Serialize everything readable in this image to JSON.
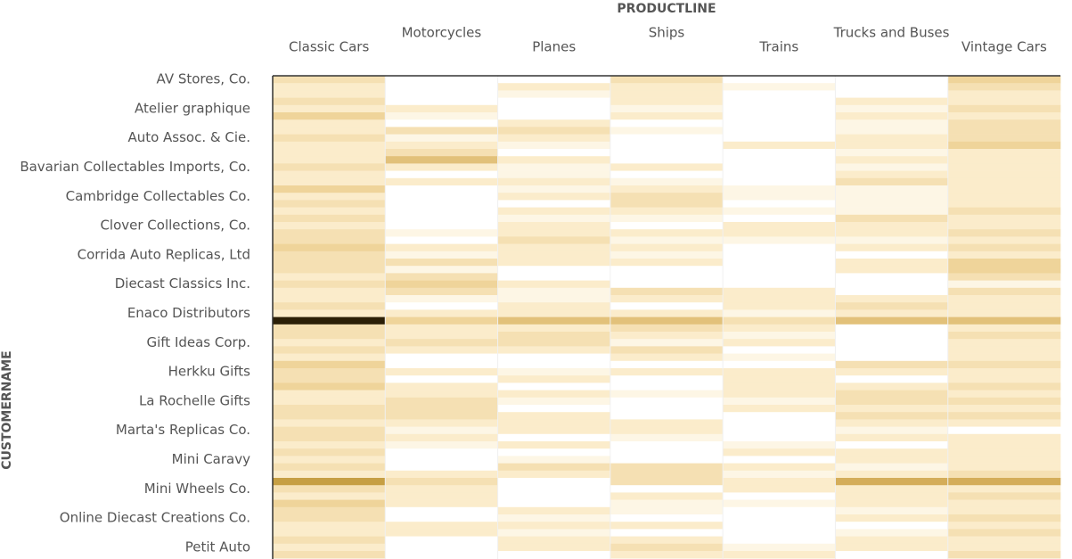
{
  "chart_data": {
    "type": "heatmap",
    "x_title": "PRODUCTLINE",
    "y_title": "CUSTOMERNAME",
    "x": [
      "Classic Cars",
      "Motorcycles",
      "Planes",
      "Ships",
      "Trains",
      "Trucks and Buses",
      "Vintage Cars"
    ],
    "categories": [
      "AV Stores, Co.",
      null,
      null,
      null,
      "Atelier graphique",
      null,
      null,
      null,
      "Auto Assoc. & Cie.",
      null,
      null,
      null,
      "Bavarian Collectables Imports, Co.",
      null,
      null,
      null,
      "Cambridge Collectables Co.",
      null,
      null,
      null,
      "Clover Collections, Co.",
      null,
      null,
      null,
      "Corrida Auto Replicas, Ltd",
      null,
      null,
      null,
      "Diecast Classics Inc.",
      null,
      null,
      null,
      "Enaco Distributors",
      null,
      null,
      null,
      "Gift Ideas Corp.",
      null,
      null,
      null,
      "Herkku Gifts",
      null,
      null,
      null,
      "La Rochelle Gifts",
      null,
      null,
      null,
      "Marta's Replicas Co.",
      null,
      null,
      null,
      "Mini Caravy",
      null,
      null,
      null,
      "Mini Wheels Co.",
      null,
      null,
      null,
      "Online Diecast Creations Co.",
      null,
      null,
      null,
      "Petit Auto",
      null
    ],
    "z": [
      [
        3,
        0,
        0,
        3,
        0,
        0,
        4
      ],
      [
        2,
        0,
        2,
        2,
        1,
        0,
        3
      ],
      [
        2,
        0,
        1,
        2,
        0,
        0,
        2
      ],
      [
        3,
        0,
        0,
        2,
        0,
        2,
        2
      ],
      [
        2,
        2,
        0,
        1,
        0,
        1,
        3
      ],
      [
        4,
        1,
        0,
        2,
        0,
        2,
        2
      ],
      [
        2,
        0,
        2,
        0,
        0,
        1,
        3
      ],
      [
        2,
        3,
        3,
        1,
        0,
        1,
        3
      ],
      [
        3,
        1,
        2,
        0,
        0,
        2,
        3
      ],
      [
        2,
        2,
        1,
        0,
        2,
        2,
        4
      ],
      [
        2,
        3,
        0,
        0,
        0,
        1,
        2
      ],
      [
        2,
        5,
        2,
        0,
        0,
        2,
        2
      ],
      [
        3,
        2,
        1,
        2,
        0,
        1,
        2
      ],
      [
        2,
        0,
        1,
        0,
        0,
        2,
        2
      ],
      [
        2,
        2,
        2,
        1,
        0,
        3,
        2
      ],
      [
        4,
        0,
        1,
        2,
        1,
        1,
        2
      ],
      [
        2,
        0,
        2,
        3,
        1,
        1,
        2
      ],
      [
        3,
        0,
        0,
        3,
        0,
        1,
        2
      ],
      [
        2,
        0,
        2,
        2,
        1,
        1,
        3
      ],
      [
        3,
        0,
        1,
        1,
        0,
        3,
        2
      ],
      [
        2,
        0,
        2,
        0,
        2,
        2,
        2
      ],
      [
        3,
        1,
        2,
        2,
        2,
        2,
        3
      ],
      [
        3,
        0,
        3,
        1,
        1,
        1,
        2
      ],
      [
        4,
        2,
        2,
        2,
        0,
        2,
        3
      ],
      [
        3,
        1,
        2,
        1,
        0,
        0,
        2
      ],
      [
        3,
        3,
        2,
        2,
        0,
        2,
        4
      ],
      [
        3,
        1,
        0,
        0,
        0,
        2,
        4
      ],
      [
        2,
        3,
        0,
        0,
        0,
        0,
        3
      ],
      [
        3,
        4,
        2,
        0,
        0,
        0,
        1
      ],
      [
        2,
        3,
        1,
        3,
        2,
        0,
        3
      ],
      [
        2,
        1,
        1,
        2,
        2,
        2,
        2
      ],
      [
        3,
        0,
        2,
        0,
        2,
        3,
        2
      ],
      [
        2,
        2,
        2,
        2,
        1,
        2,
        2
      ],
      [
        10,
        4,
        5,
        5,
        3,
        5,
        5
      ],
      [
        3,
        2,
        2,
        3,
        2,
        0,
        2
      ],
      [
        3,
        2,
        3,
        2,
        1,
        0,
        3
      ],
      [
        2,
        3,
        3,
        1,
        2,
        0,
        2
      ],
      [
        3,
        2,
        2,
        3,
        0,
        0,
        2
      ],
      [
        2,
        0,
        0,
        2,
        1,
        0,
        2
      ],
      [
        4,
        0,
        0,
        0,
        0,
        3,
        3
      ],
      [
        3,
        2,
        1,
        2,
        2,
        2,
        2
      ],
      [
        3,
        0,
        2,
        0,
        2,
        0,
        2
      ],
      [
        4,
        2,
        0,
        0,
        2,
        2,
        3
      ],
      [
        2,
        2,
        2,
        1,
        2,
        3,
        2
      ],
      [
        2,
        3,
        1,
        0,
        1,
        3,
        3
      ],
      [
        3,
        3,
        0,
        0,
        2,
        2,
        2
      ],
      [
        3,
        3,
        2,
        0,
        0,
        3,
        3
      ],
      [
        2,
        2,
        2,
        2,
        0,
        2,
        2
      ],
      [
        3,
        1,
        2,
        2,
        0,
        1,
        0
      ],
      [
        3,
        2,
        0,
        1,
        0,
        2,
        2
      ],
      [
        2,
        1,
        2,
        0,
        1,
        0,
        2
      ],
      [
        3,
        0,
        0,
        0,
        2,
        2,
        2
      ],
      [
        2,
        0,
        1,
        0,
        0,
        2,
        2
      ],
      [
        3,
        0,
        3,
        3,
        2,
        1,
        2
      ],
      [
        2,
        2,
        2,
        3,
        1,
        2,
        3
      ],
      [
        7,
        3,
        0,
        3,
        2,
        6,
        6
      ],
      [
        3,
        2,
        0,
        0,
        2,
        2,
        2
      ],
      [
        2,
        2,
        0,
        2,
        0,
        2,
        3
      ],
      [
        4,
        2,
        0,
        1,
        1,
        2,
        2
      ],
      [
        3,
        0,
        2,
        1,
        0,
        1,
        2
      ],
      [
        3,
        0,
        1,
        0,
        0,
        2,
        3
      ],
      [
        2,
        2,
        2,
        2,
        0,
        0,
        2
      ],
      [
        2,
        2,
        1,
        0,
        0,
        1,
        3
      ],
      [
        3,
        0,
        2,
        2,
        0,
        2,
        2
      ],
      [
        2,
        0,
        2,
        3,
        1,
        2,
        2
      ],
      [
        3,
        0,
        0,
        2,
        2,
        0,
        3
      ]
    ],
    "colorscale": [
      "#ffffff",
      "#fbeccb",
      "#efd49a",
      "#d4ad5a",
      "#b8912e",
      "#2b1f07"
    ]
  }
}
